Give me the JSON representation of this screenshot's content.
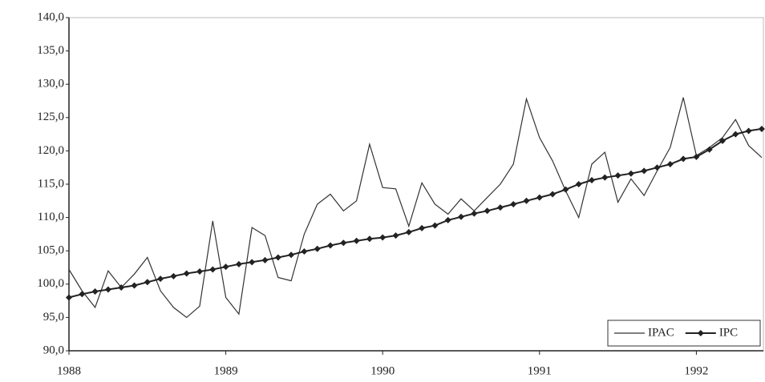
{
  "chart_data": {
    "type": "line",
    "categories": [
      "1988",
      null,
      null,
      null,
      null,
      null,
      null,
      null,
      null,
      null,
      null,
      null,
      "1989",
      null,
      null,
      null,
      null,
      null,
      null,
      null,
      null,
      null,
      null,
      null,
      "1990",
      null,
      null,
      null,
      null,
      null,
      null,
      null,
      null,
      null,
      null,
      null,
      "1991",
      null,
      null,
      null,
      null,
      null,
      null,
      null,
      null,
      null,
      null,
      null,
      "1992",
      null,
      null,
      null,
      null,
      null
    ],
    "series": [
      {
        "name": "IPAC",
        "color": "#333333",
        "marker": false,
        "values": [
          102.2,
          99.0,
          96.5,
          102.0,
          99.5,
          101.5,
          104.0,
          99.0,
          96.5,
          95.0,
          96.7,
          109.5,
          98.0,
          95.5,
          108.5,
          107.3,
          101.0,
          100.5,
          107.5,
          112.0,
          113.5,
          111.0,
          112.5,
          121.0,
          114.5,
          114.3,
          108.7,
          115.2,
          112.0,
          110.5,
          112.8,
          111.0,
          113.0,
          115.0,
          118.0,
          127.8,
          122.0,
          118.5,
          114.0,
          110.0,
          118.0,
          119.8,
          112.3,
          115.8,
          113.3,
          117.0,
          120.5,
          128.0,
          119.3,
          120.5,
          122.0,
          124.7,
          120.8,
          119.0
        ]
      },
      {
        "name": "IPC",
        "color": "#222222",
        "marker": true,
        "values": [
          98.0,
          98.5,
          98.9,
          99.2,
          99.5,
          99.8,
          100.3,
          100.8,
          101.2,
          101.6,
          101.9,
          102.2,
          102.6,
          103.0,
          103.3,
          103.6,
          104.0,
          104.4,
          104.9,
          105.3,
          105.8,
          106.2,
          106.5,
          106.8,
          107.0,
          107.3,
          107.8,
          108.4,
          108.8,
          109.6,
          110.1,
          110.6,
          111.0,
          111.5,
          112.0,
          112.5,
          113.0,
          113.5,
          114.2,
          115.0,
          115.6,
          116.0,
          116.3,
          116.6,
          117.0,
          117.5,
          118.0,
          118.8,
          119.1,
          120.2,
          121.5,
          122.5,
          123.0,
          123.3
        ]
      }
    ],
    "ylim": [
      90,
      140
    ],
    "yticks": [
      {
        "value": 90,
        "label": "90,0"
      },
      {
        "value": 95,
        "label": "95,0"
      },
      {
        "value": 100,
        "label": "100,0"
      },
      {
        "value": 105,
        "label": "105,0"
      },
      {
        "value": 110,
        "label": "110,0"
      },
      {
        "value": 115,
        "label": "115,0"
      },
      {
        "value": 120,
        "label": "120,0"
      },
      {
        "value": 125,
        "label": "125,0"
      },
      {
        "value": 130,
        "label": "130,0"
      },
      {
        "value": 135,
        "label": "135,0"
      },
      {
        "value": 140,
        "label": "140,0"
      }
    ],
    "grid": false,
    "legend": "bottom-right"
  }
}
